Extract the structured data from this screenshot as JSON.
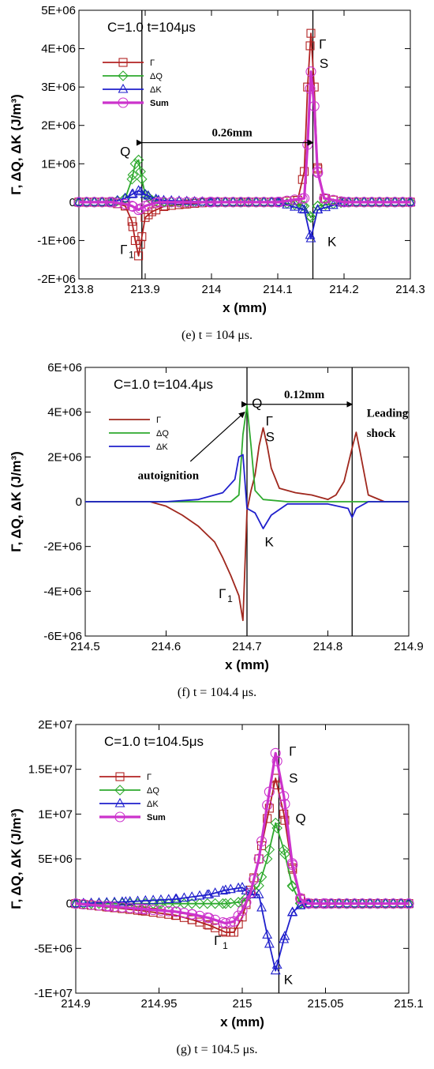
{
  "chart_data": [
    {
      "type": "line",
      "panel": "e",
      "title": "C=1.0 t=104μs",
      "xlabel": "x (mm)",
      "ylabel": "Γ, ΔQ, ΔK (J/m³)",
      "xlim": [
        213.8,
        214.3
      ],
      "ylim": [
        -2000000,
        5000000
      ],
      "xticks": [
        213.8,
        213.9,
        214,
        214.1,
        214.2,
        214.3
      ],
      "xtick_labels": [
        "213.8",
        "213.9",
        "214",
        "214.1",
        "214.2",
        "214.3"
      ],
      "yticks": [
        -2000000,
        -1000000,
        0,
        1000000,
        2000000,
        3000000,
        4000000,
        5000000
      ],
      "ytick_labels": [
        "-2E+06",
        "-1E+06",
        "0",
        "1E+06",
        "2E+06",
        "3E+06",
        "4E+06",
        "5E+06"
      ],
      "grid": false,
      "legend_placement": "top-left",
      "series": [
        {
          "name": "Γ",
          "color": "#b22222",
          "marker": "square",
          "x": [
            213.8,
            213.85,
            213.87,
            213.88,
            213.885,
            213.89,
            213.895,
            213.9,
            213.91,
            213.93,
            213.96,
            214.0,
            214.05,
            214.1,
            214.13,
            214.14,
            214.145,
            214.15,
            214.155,
            214.16,
            214.17,
            214.2,
            214.3
          ],
          "y": [
            0,
            0,
            -100000,
            -500000,
            -1000000,
            -1400000,
            -900000,
            -400000,
            -250000,
            -100000,
            -50000,
            0,
            0,
            0,
            50000,
            800000,
            3000000,
            4400000,
            3000000,
            900000,
            100000,
            0,
            0
          ]
        },
        {
          "name": "ΔQ",
          "color": "#2eaa2e",
          "marker": "diamond",
          "x": [
            213.8,
            213.85,
            213.87,
            213.88,
            213.885,
            213.89,
            213.895,
            213.9,
            213.91,
            213.93,
            214.0,
            214.1,
            214.14,
            214.15,
            214.16,
            214.2,
            214.3
          ],
          "y": [
            0,
            0,
            100000,
            600000,
            1000000,
            1100000,
            600000,
            200000,
            50000,
            0,
            0,
            0,
            -100000,
            -400000,
            -100000,
            0,
            0
          ]
        },
        {
          "name": "ΔK",
          "color": "#1f1fcc",
          "marker": "triangle",
          "x": [
            213.8,
            213.85,
            213.87,
            213.88,
            213.89,
            213.9,
            213.92,
            214.0,
            214.1,
            214.14,
            214.15,
            214.16,
            214.2,
            214.3
          ],
          "y": [
            0,
            0,
            100000,
            200000,
            300000,
            200000,
            50000,
            0,
            0,
            -200000,
            -950000,
            -200000,
            0,
            0
          ]
        },
        {
          "name": "Sum",
          "color": "#cc33cc",
          "marker": "circle",
          "bold": true,
          "x": [
            213.8,
            213.85,
            213.87,
            213.88,
            213.89,
            213.9,
            213.92,
            214.0,
            214.1,
            214.14,
            214.145,
            214.15,
            214.155,
            214.16,
            214.17,
            214.2,
            214.3
          ],
          "y": [
            0,
            0,
            -50000,
            -100000,
            -200000,
            -100000,
            0,
            0,
            0,
            100000,
            1500000,
            3400000,
            2500000,
            800000,
            100000,
            0,
            0
          ]
        }
      ],
      "annotations": [
        {
          "text": "Q",
          "x": 213.862,
          "y": 1200000
        },
        {
          "text": "Γ",
          "x": 214.162,
          "y": 4000000
        },
        {
          "text": "S",
          "x": 214.163,
          "y": 3500000
        },
        {
          "text": "Γ",
          "sub": "1",
          "x": 213.862,
          "y": -1350000
        },
        {
          "text": "K",
          "x": 214.175,
          "y": -1150000
        }
      ],
      "vlines": [
        213.895,
        214.153
      ],
      "arrow_label": "0.26mm",
      "arrow": {
        "x1": 213.895,
        "x2": 214.153,
        "y": 1550000
      },
      "caption": "(e) t = 104 μs."
    },
    {
      "type": "line",
      "panel": "f",
      "title": "C=1.0 t=104.4μs",
      "xlabel": "x (mm)",
      "ylabel": "Γ, ΔQ, ΔK (J/m³)",
      "xlim": [
        214.5,
        214.9
      ],
      "ylim": [
        -6000000,
        6000000
      ],
      "xticks": [
        214.5,
        214.6,
        214.7,
        214.8,
        214.9
      ],
      "xtick_labels": [
        "214.5",
        "214.6",
        "214.7",
        "214.8",
        "214.9"
      ],
      "yticks": [
        -6000000,
        -4000000,
        -2000000,
        0,
        2000000,
        4000000,
        6000000
      ],
      "ytick_labels": [
        "-6E+06",
        "-4E+06",
        "-2E+06",
        "0",
        "2E+06",
        "4E+06",
        "6E+06"
      ],
      "grid": false,
      "legend_placement": "top-left",
      "series": [
        {
          "name": "Γ",
          "color": "#a0281e",
          "marker": "none",
          "x": [
            214.5,
            214.58,
            214.6,
            214.62,
            214.64,
            214.66,
            214.67,
            214.68,
            214.69,
            214.695,
            214.7,
            214.705,
            214.71,
            214.715,
            214.72,
            214.725,
            214.73,
            214.74,
            214.76,
            214.78,
            214.8,
            214.81,
            214.82,
            214.83,
            214.835,
            214.84,
            214.85,
            214.87,
            214.9
          ],
          "y": [
            0,
            0,
            -200000,
            -600000,
            -1100000,
            -1800000,
            -2500000,
            -3300000,
            -4200000,
            -5300000,
            -400000,
            500000,
            1200000,
            2500000,
            3300000,
            2500000,
            1500000,
            600000,
            400000,
            300000,
            100000,
            300000,
            900000,
            2400000,
            3100000,
            2200000,
            300000,
            0,
            0
          ]
        },
        {
          "name": "ΔQ",
          "color": "#2eaa2e",
          "marker": "none",
          "x": [
            214.5,
            214.68,
            214.69,
            214.695,
            214.7,
            214.705,
            214.71,
            214.72,
            214.75,
            214.8,
            214.83,
            214.9
          ],
          "y": [
            0,
            0,
            300000,
            3000000,
            4300000,
            2500000,
            500000,
            100000,
            0,
            0,
            0,
            0
          ]
        },
        {
          "name": "ΔK",
          "color": "#2020cc",
          "marker": "none",
          "x": [
            214.5,
            214.6,
            214.64,
            214.67,
            214.685,
            214.69,
            214.695,
            214.7,
            214.71,
            214.72,
            214.73,
            214.75,
            214.8,
            214.825,
            214.83,
            214.835,
            214.85,
            214.9
          ],
          "y": [
            0,
            0,
            100000,
            400000,
            1000000,
            2000000,
            2100000,
            -300000,
            -500000,
            -1200000,
            -600000,
            -100000,
            -100000,
            -300000,
            -700000,
            -300000,
            0,
            0
          ]
        }
      ],
      "annotations": [
        {
          "text": "Q",
          "x": 214.706,
          "y": 4200000
        },
        {
          "text": "Γ",
          "x": 214.723,
          "y": 3400000
        },
        {
          "text": "S",
          "x": 214.723,
          "y": 2700000
        },
        {
          "text": "K",
          "x": 214.722,
          "y": -2000000
        },
        {
          "text": "Γ",
          "sub": "1",
          "x": 214.665,
          "y": -4300000
        }
      ],
      "vlines": [
        214.7,
        214.83
      ],
      "arrow_label": "0.12mm",
      "arrow": {
        "x1": 214.7,
        "x2": 214.83,
        "y": 4350000
      },
      "text_labels": [
        {
          "text": "autoignition",
          "x": 214.565,
          "y": 1000000
        },
        {
          "text": "Leading",
          "x": 214.848,
          "y": 3800000
        },
        {
          "text": "shock",
          "x": 214.848,
          "y": 2900000
        }
      ],
      "pointer": {
        "from_x": 214.63,
        "from_y": 1800000,
        "to_x": 214.697,
        "to_y": 4000000
      },
      "caption": "(f) t = 104.4 μs."
    },
    {
      "type": "line",
      "panel": "g",
      "title": "C=1.0 t=104.5μs",
      "xlabel": "x (mm)",
      "ylabel": "Γ, ΔQ, ΔK (J/m³)",
      "xlim": [
        214.9,
        215.1
      ],
      "ylim": [
        -10000000,
        20000000
      ],
      "xticks": [
        214.9,
        214.95,
        215,
        215.05,
        215.1
      ],
      "xtick_labels": [
        "214.9",
        "214.95",
        "215",
        "215.05",
        "215.1"
      ],
      "yticks": [
        -10000000,
        -5000000,
        0,
        5000000,
        10000000,
        15000000,
        20000000
      ],
      "ytick_labels": [
        "-1E+07",
        "-5E+06",
        "0",
        "5E+06",
        "1E+07",
        "1.5E+07",
        "2E+07"
      ],
      "grid": false,
      "legend_placement": "top-left",
      "series": [
        {
          "name": "Γ",
          "color": "#b22222",
          "marker": "square",
          "x": [
            214.9,
            214.92,
            214.94,
            214.96,
            214.97,
            214.98,
            214.99,
            214.995,
            215.0,
            215.005,
            215.01,
            215.015,
            215.02,
            215.025,
            215.03,
            215.035,
            215.04,
            215.05,
            215.1
          ],
          "y": [
            0,
            -400000,
            -800000,
            -1300000,
            -1800000,
            -2400000,
            -3200000,
            -3200000,
            -1500000,
            1500000,
            5000000,
            9500000,
            14000000,
            10000000,
            4000000,
            500000,
            0,
            0,
            0
          ]
        },
        {
          "name": "ΔQ",
          "color": "#2eaa2e",
          "marker": "diamond",
          "x": [
            214.9,
            214.95,
            214.99,
            215.0,
            215.01,
            215.015,
            215.02,
            215.025,
            215.03,
            215.035,
            215.04,
            215.1
          ],
          "y": [
            0,
            0,
            0,
            200000,
            2000000,
            5000000,
            9000000,
            6000000,
            2000000,
            0,
            0,
            0
          ]
        },
        {
          "name": "ΔK",
          "color": "#1f1fcc",
          "marker": "triangle",
          "x": [
            214.9,
            214.93,
            214.96,
            214.98,
            214.99,
            215.0,
            215.005,
            215.01,
            215.015,
            215.02,
            215.025,
            215.03,
            215.035,
            215.04,
            215.1
          ],
          "y": [
            0,
            200000,
            500000,
            1000000,
            1500000,
            1800000,
            1000000,
            1000000,
            -3500000,
            -7500000,
            -4000000,
            -1000000,
            -200000,
            0,
            0
          ]
        },
        {
          "name": "Sum",
          "color": "#cc33cc",
          "marker": "circle",
          "bold": true,
          "x": [
            214.9,
            214.92,
            214.94,
            214.96,
            214.97,
            214.98,
            214.99,
            214.995,
            215.0,
            215.005,
            215.01,
            215.015,
            215.02,
            215.025,
            215.03,
            215.035,
            215.04,
            215.05,
            215.1
          ],
          "y": [
            0,
            -300000,
            -600000,
            -900000,
            -1200000,
            -1600000,
            -2200000,
            -2000000,
            -800000,
            1200000,
            5000000,
            11000000,
            16800000,
            12000000,
            4500000,
            500000,
            0,
            0,
            0
          ]
        }
      ],
      "annotations": [
        {
          "text": "Γ",
          "x": 215.028,
          "y": 16500000
        },
        {
          "text": "S",
          "x": 215.028,
          "y": 13500000
        },
        {
          "text": "Q",
          "x": 215.032,
          "y": 9000000
        },
        {
          "text": "Γ",
          "sub": "1",
          "x": 214.983,
          "y": -4600000
        },
        {
          "text": "K",
          "x": 215.025,
          "y": -9000000
        }
      ],
      "vlines": [
        215.022
      ],
      "caption": "(g) t = 104.5 μs."
    }
  ]
}
